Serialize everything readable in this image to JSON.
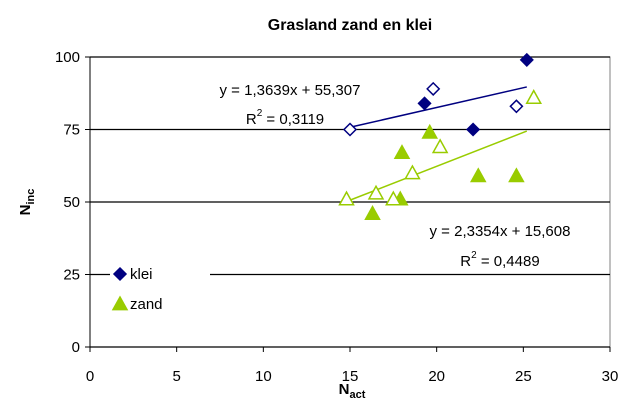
{
  "chart_data": {
    "type": "scatter",
    "title": "Grasland zand en klei",
    "x_label": {
      "base": "N",
      "sub": "act"
    },
    "y_label": {
      "base": "N",
      "sub": "inc"
    },
    "xlim": [
      0,
      30
    ],
    "xticks": [
      0,
      5,
      10,
      15,
      20,
      25,
      30
    ],
    "ylim": [
      0,
      100
    ],
    "yticks": [
      0,
      25,
      50,
      75,
      100
    ],
    "grid": true,
    "legend": "lower left",
    "series": [
      {
        "name": "klei",
        "color": "#000080",
        "marker": "diamond",
        "x": [
          25.2,
          19.3,
          22.1,
          15,
          19.8,
          24.6
        ],
        "values": [
          99,
          84,
          75,
          75,
          89,
          83
        ],
        "hollow": [
          false,
          false,
          false,
          true,
          true,
          true
        ],
        "trendline": {
          "slope": 1.3639,
          "intercept": 55.307,
          "x_range": [
            15,
            25.2
          ],
          "equation": "y = 1,3639x + 55,307",
          "r2": {
            "base": "R",
            "sup": "2",
            "rest": " = 0,3119"
          }
        }
      },
      {
        "name": "zand",
        "color": "#99cc00",
        "marker": "triangle",
        "x": [
          16.3,
          17.9,
          18,
          19.6,
          22.4,
          24.6,
          14.8,
          16.5,
          17.5,
          18.6,
          20.2,
          25.6
        ],
        "values": [
          46,
          51,
          67,
          74,
          59,
          59,
          51,
          53,
          51,
          60,
          69,
          86
        ],
        "hollow": [
          false,
          false,
          false,
          false,
          false,
          false,
          true,
          true,
          true,
          true,
          true,
          true
        ],
        "trendline": {
          "slope": 2.3354,
          "intercept": 15.608,
          "x_range": [
            14.8,
            25.2
          ],
          "equation": "y = 2,3354x + 15,608",
          "r2": {
            "base": "R",
            "sup": "2",
            "rest": " = 0,4489"
          }
        }
      }
    ]
  }
}
